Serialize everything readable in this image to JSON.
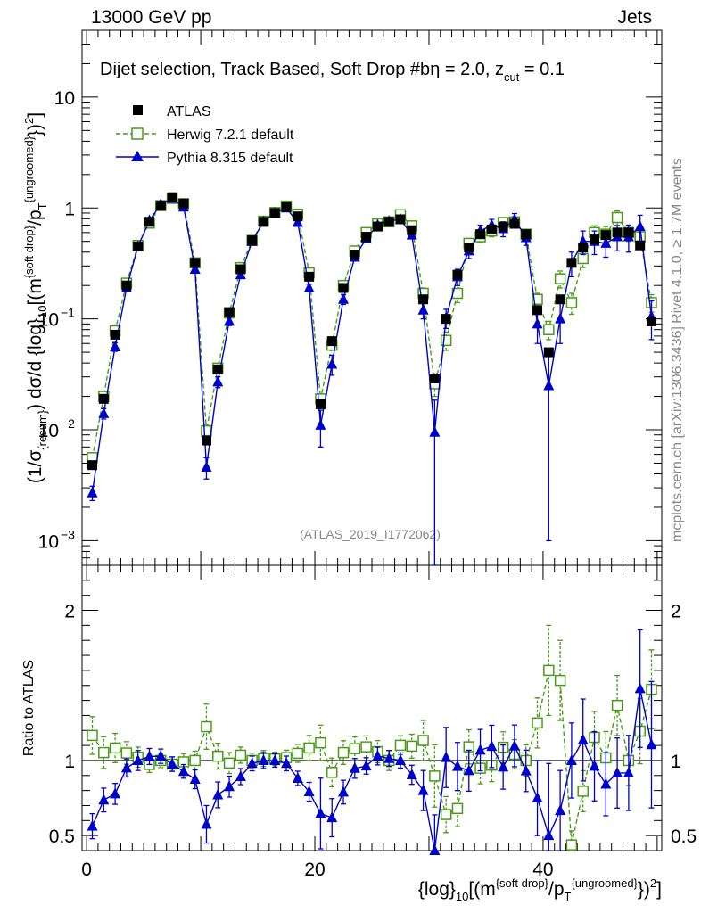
{
  "header": {
    "energy_label": "13000 GeV pp",
    "category_label": "Jets"
  },
  "side_labels": {
    "rivet": "Rivet 4.1.0, ≥ 1.7M events",
    "mcplots": "mcplots.cern.ch [arXiv:1306.3436]"
  },
  "chart_data": {
    "type": "line",
    "title": "Dijet selection, Track Based, Soft Drop #b",
    "title_params": {
      "eta_label": "η = 2.0, z",
      "cut_sub": "cut",
      "cut_value": " = 0.1"
    },
    "watermark": "(ATLAS_2019_I1772062)",
    "xlabel": {
      "prefix": "{log}",
      "sub": "10",
      "mid": "[(m",
      "sup1": "{soft drop}",
      "slash": "/p",
      "subT": "T",
      "sup2": "{ungroomed}",
      "end": "})",
      "sq": "2",
      "close": "]"
    },
    "ylabel": {
      "p1": "(1/σ",
      "sub1": "{resum}",
      "p2": ") dσ/d {log}",
      "sub2": "10",
      "p3": "[(m",
      "sup1": "{soft drop}",
      "p4": "/p",
      "subT": "T",
      "sup2": "{ungroomed}",
      "p5": "})",
      "sq": "2",
      "p6": "]"
    },
    "ratio_ylabel": "Ratio to ATLAS",
    "xlim": [
      -0.4,
      50.4
    ],
    "ylim": [
      0.0006,
      40
    ],
    "yscale": "log",
    "ratio_ylim": [
      0.4,
      2.3
    ],
    "x_ticks": [
      0,
      20,
      40
    ],
    "x_tick_labels": [
      "0",
      "20",
      "40"
    ],
    "y_ticks": [
      0.001,
      0.01,
      0.1,
      1,
      10
    ],
    "y_tick_labels": [
      {
        "base": "10",
        "exp": "−3"
      },
      {
        "base": "10",
        "exp": "−2"
      },
      {
        "base": "10",
        "exp": "−1"
      },
      {
        "base": "1",
        "exp": ""
      },
      {
        "base": "10",
        "exp": ""
      }
    ],
    "ratio_ticks": [
      0.5,
      1,
      2
    ],
    "ratio_tick_labels": [
      "0.5",
      "1",
      "2"
    ],
    "x": [
      0.5,
      1.5,
      2.5,
      3.5,
      4.5,
      5.5,
      6.5,
      7.5,
      8.5,
      9.5,
      10.5,
      11.5,
      12.5,
      13.5,
      14.5,
      15.5,
      16.5,
      17.5,
      18.5,
      19.5,
      20.5,
      21.5,
      22.5,
      23.5,
      24.5,
      25.5,
      26.5,
      27.5,
      28.5,
      29.5,
      30.5,
      31.5,
      32.5,
      33.5,
      34.5,
      35.5,
      36.5,
      37.5,
      38.5,
      39.5,
      40.5,
      41.5,
      42.5,
      43.5,
      44.5,
      45.5,
      46.5,
      47.5,
      48.5,
      49.5
    ],
    "series": [
      {
        "name": "ATLAS",
        "color": "#000000",
        "marker": "square-filled",
        "values": [
          0.0048,
          0.019,
          0.072,
          0.2,
          0.45,
          0.75,
          1.05,
          1.25,
          1.1,
          0.32,
          0.008,
          0.035,
          0.115,
          0.28,
          0.51,
          0.75,
          0.9,
          1.02,
          0.84,
          0.24,
          0.017,
          0.063,
          0.19,
          0.38,
          0.55,
          0.68,
          0.75,
          0.79,
          0.63,
          0.15,
          0.029,
          0.1,
          0.25,
          0.44,
          0.58,
          0.64,
          0.68,
          0.72,
          0.58,
          0.12,
          0.05,
          0.15,
          0.32,
          0.44,
          0.52,
          0.57,
          0.6,
          0.6,
          0.46,
          0.095
        ],
        "errors": [
          0.0005,
          0.002,
          0.006,
          0.015,
          0.03,
          0.04,
          0.05,
          0.06,
          0.06,
          0.02,
          0.001,
          0.003,
          0.007,
          0.015,
          0.025,
          0.04,
          0.04,
          0.05,
          0.04,
          0.015,
          0.002,
          0.005,
          0.012,
          0.02,
          0.03,
          0.04,
          0.04,
          0.04,
          0.04,
          0.01,
          0.004,
          0.01,
          0.02,
          0.03,
          0.04,
          0.05,
          0.05,
          0.05,
          0.04,
          0.01,
          0.005,
          0.015,
          0.03,
          0.05,
          0.06,
          0.07,
          0.07,
          0.08,
          0.07,
          0.015
        ]
      },
      {
        "name": "Herwig 7.2.1 default",
        "color": "#4a9a1a",
        "marker": "square-open",
        "dash": "5,3",
        "values": [
          0.0056,
          0.02,
          0.078,
          0.21,
          0.46,
          0.73,
          1.05,
          1.22,
          1.09,
          0.32,
          0.0098,
          0.036,
          0.113,
          0.29,
          0.51,
          0.76,
          0.91,
          1.04,
          0.88,
          0.26,
          0.019,
          0.058,
          0.2,
          0.41,
          0.6,
          0.72,
          0.75,
          0.87,
          0.69,
          0.17,
          0.026,
          0.064,
          0.17,
          0.48,
          0.55,
          0.62,
          0.74,
          0.75,
          0.58,
          0.15,
          0.08,
          0.23,
          0.14,
          0.35,
          0.6,
          0.58,
          0.82,
          0.6,
          0.55,
          0.14
        ],
        "errors": [
          0.0006,
          0.002,
          0.007,
          0.015,
          0.03,
          0.04,
          0.05,
          0.06,
          0.06,
          0.02,
          0.0012,
          0.003,
          0.008,
          0.015,
          0.025,
          0.04,
          0.04,
          0.05,
          0.05,
          0.02,
          0.002,
          0.006,
          0.015,
          0.03,
          0.04,
          0.05,
          0.05,
          0.05,
          0.05,
          0.02,
          0.006,
          0.012,
          0.03,
          0.05,
          0.06,
          0.07,
          0.07,
          0.07,
          0.06,
          0.02,
          0.015,
          0.04,
          0.03,
          0.06,
          0.09,
          0.1,
          0.12,
          0.1,
          0.1,
          0.025
        ]
      },
      {
        "name": "Pythia 8.315 default",
        "color": "#0000cc",
        "marker": "triangle-filled",
        "values": [
          0.0027,
          0.014,
          0.056,
          0.19,
          0.45,
          0.77,
          1.08,
          1.22,
          1.02,
          0.28,
          0.0046,
          0.027,
          0.095,
          0.25,
          0.5,
          0.75,
          0.9,
          1.0,
          0.74,
          0.19,
          0.011,
          0.039,
          0.15,
          0.36,
          0.53,
          0.7,
          0.76,
          0.79,
          0.57,
          0.12,
          0.0095,
          0.102,
          0.24,
          0.41,
          0.62,
          0.7,
          0.65,
          0.79,
          0.54,
          0.09,
          0.025,
          0.1,
          0.32,
          0.5,
          0.5,
          0.48,
          0.55,
          0.55,
          0.68,
          0.105
        ],
        "errors": [
          0.0004,
          0.0015,
          0.005,
          0.012,
          0.03,
          0.04,
          0.05,
          0.06,
          0.05,
          0.02,
          0.001,
          0.003,
          0.008,
          0.015,
          0.025,
          0.04,
          0.04,
          0.05,
          0.04,
          0.015,
          0.004,
          0.008,
          0.015,
          0.025,
          0.03,
          0.04,
          0.04,
          0.04,
          0.04,
          0.02,
          0.009,
          0.02,
          0.04,
          0.06,
          0.08,
          0.09,
          0.1,
          0.1,
          0.08,
          0.03,
          0.024,
          0.04,
          0.08,
          0.12,
          0.12,
          0.12,
          0.14,
          0.15,
          0.18,
          0.04
        ]
      }
    ]
  }
}
